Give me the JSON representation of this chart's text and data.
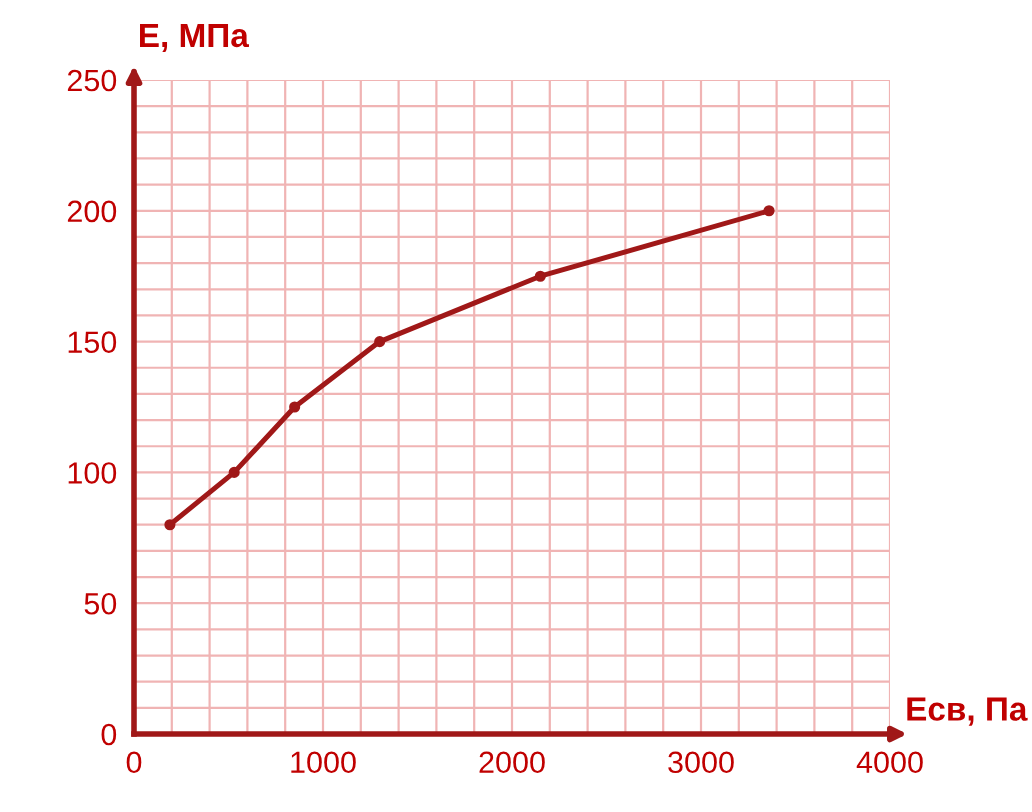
{
  "chart_data": {
    "type": "line",
    "xlabel": "Eсв, Па",
    "ylabel": "E, МПа",
    "x": [
      190,
      530,
      850,
      1300,
      2150,
      3360
    ],
    "series": [
      {
        "color": "#a01818",
        "values": [
          80,
          100,
          125,
          150,
          175,
          200
        ]
      }
    ],
    "marker": "circle",
    "line_style": "solid",
    "grid": true,
    "xlim": [
      0,
      4000
    ],
    "ylim": [
      0,
      250
    ],
    "xticks": [
      0,
      {
        "value": 200,
        "label": null
      },
      {
        "value": 400,
        "label": null
      },
      {
        "value": 600,
        "label": null
      },
      {
        "value": 800,
        "label": null
      },
      1000,
      {
        "value": 1200,
        "label": null
      },
      {
        "value": 1400,
        "label": null
      },
      {
        "value": 1600,
        "label": null
      },
      {
        "value": 1800,
        "label": null
      },
      2000,
      {
        "value": 2200,
        "label": null
      },
      {
        "value": 2400,
        "label": null
      },
      {
        "value": 2600,
        "label": null
      },
      {
        "value": 2800,
        "label": null
      },
      3000,
      {
        "value": 3200,
        "label": null
      },
      {
        "value": 3400,
        "label": null
      },
      {
        "value": 3600,
        "label": null
      },
      {
        "value": 3800,
        "label": null
      },
      4000
    ],
    "yticks": [
      0,
      {
        "value": 10,
        "label": null
      },
      {
        "value": 20,
        "label": null
      },
      {
        "value": 30,
        "label": null
      },
      {
        "value": 40,
        "label": null
      },
      50,
      {
        "value": 60,
        "label": null
      },
      {
        "value": 70,
        "label": null
      },
      {
        "value": 80,
        "label": null
      },
      {
        "value": 90,
        "label": null
      },
      100,
      {
        "value": 110,
        "label": null
      },
      {
        "value": 120,
        "label": null
      },
      {
        "value": 130,
        "label": null
      },
      {
        "value": 140,
        "label": null
      },
      150,
      {
        "value": 160,
        "label": null
      },
      {
        "value": 170,
        "label": null
      },
      {
        "value": 180,
        "label": null
      },
      {
        "value": 190,
        "label": null
      },
      200,
      {
        "value": 210,
        "label": null
      },
      {
        "value": 220,
        "label": null
      },
      {
        "value": 230,
        "label": null
      },
      {
        "value": 240,
        "label": null
      },
      250
    ]
  }
}
